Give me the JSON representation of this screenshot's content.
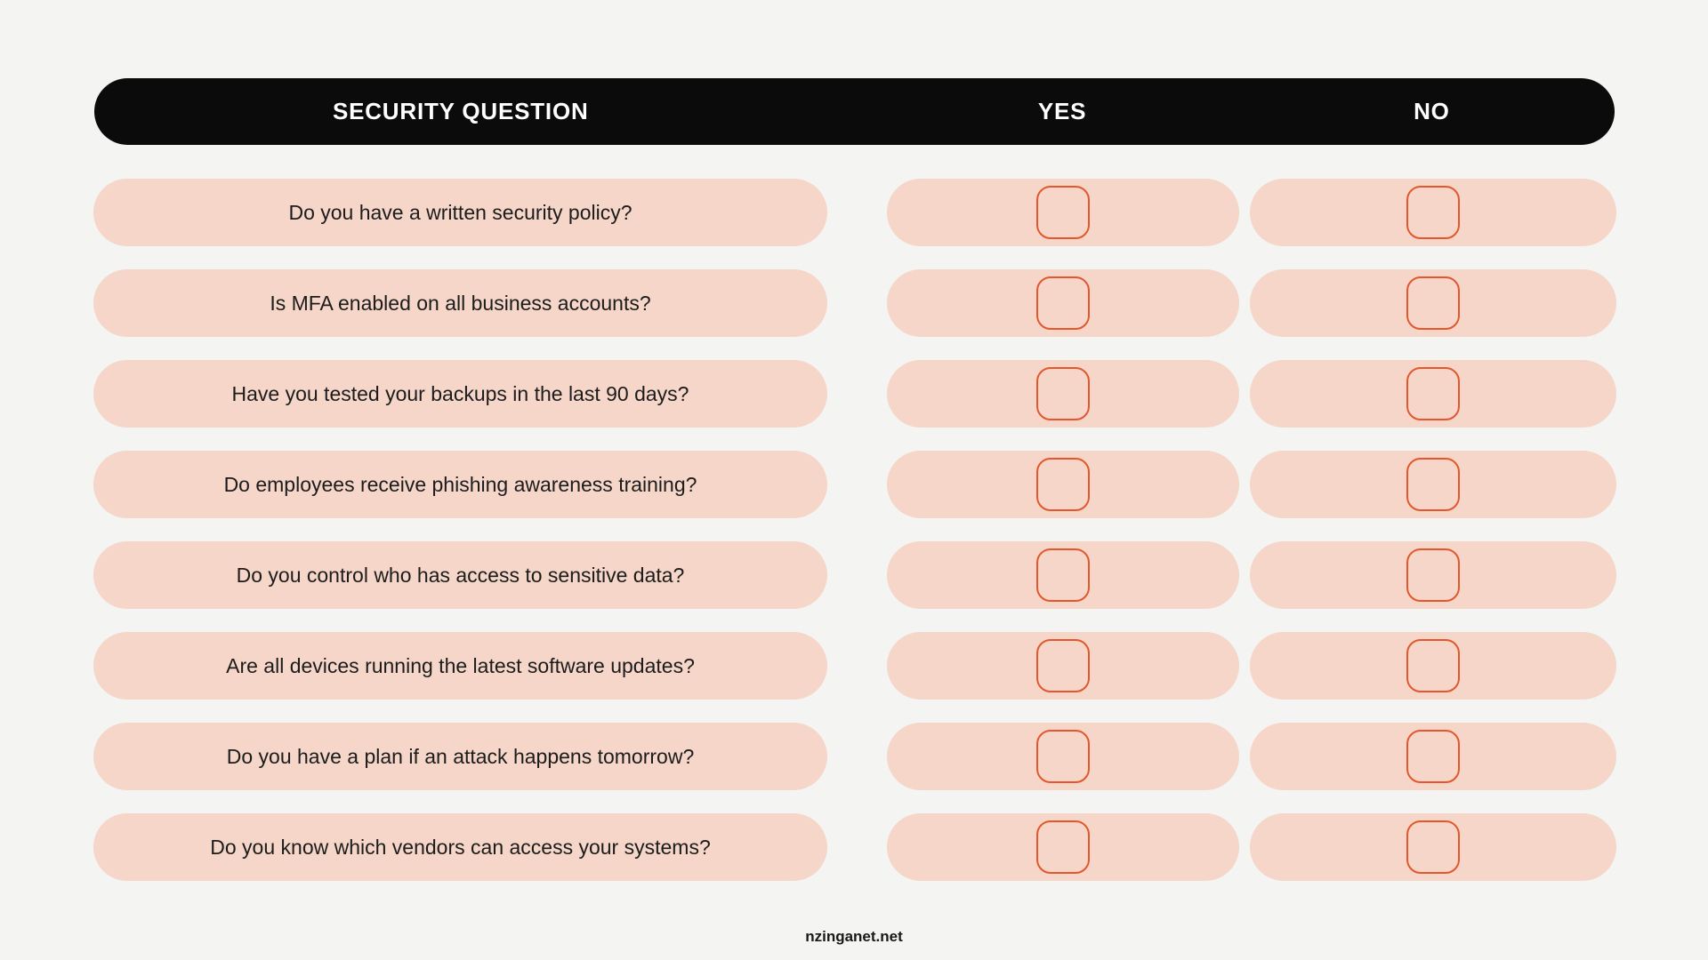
{
  "colors": {
    "page_bg": "#f4f4f2",
    "header_bg": "#0b0b0b",
    "header_text": "#ffffff",
    "pill_bg": "#f5d6c8",
    "checkbox_border": "#e4572c",
    "question_text": "#1c1c1c"
  },
  "header": {
    "question_label": "SECURITY QUESTION",
    "yes_label": "YES",
    "no_label": "NO"
  },
  "rows": [
    {
      "question": "Do you have a written security policy?"
    },
    {
      "question": "Is MFA enabled on all business accounts?"
    },
    {
      "question": "Have you tested your backups in the last 90 days?"
    },
    {
      "question": "Do employees receive phishing awareness training?"
    },
    {
      "question": "Do you control who has access to sensitive data?"
    },
    {
      "question": "Are all devices running the latest software updates?"
    },
    {
      "question": "Do you have a plan if an attack happens tomorrow?"
    },
    {
      "question": "Do you know which vendors can access your systems?"
    }
  ],
  "footer": {
    "text": "nzinganet.net"
  }
}
